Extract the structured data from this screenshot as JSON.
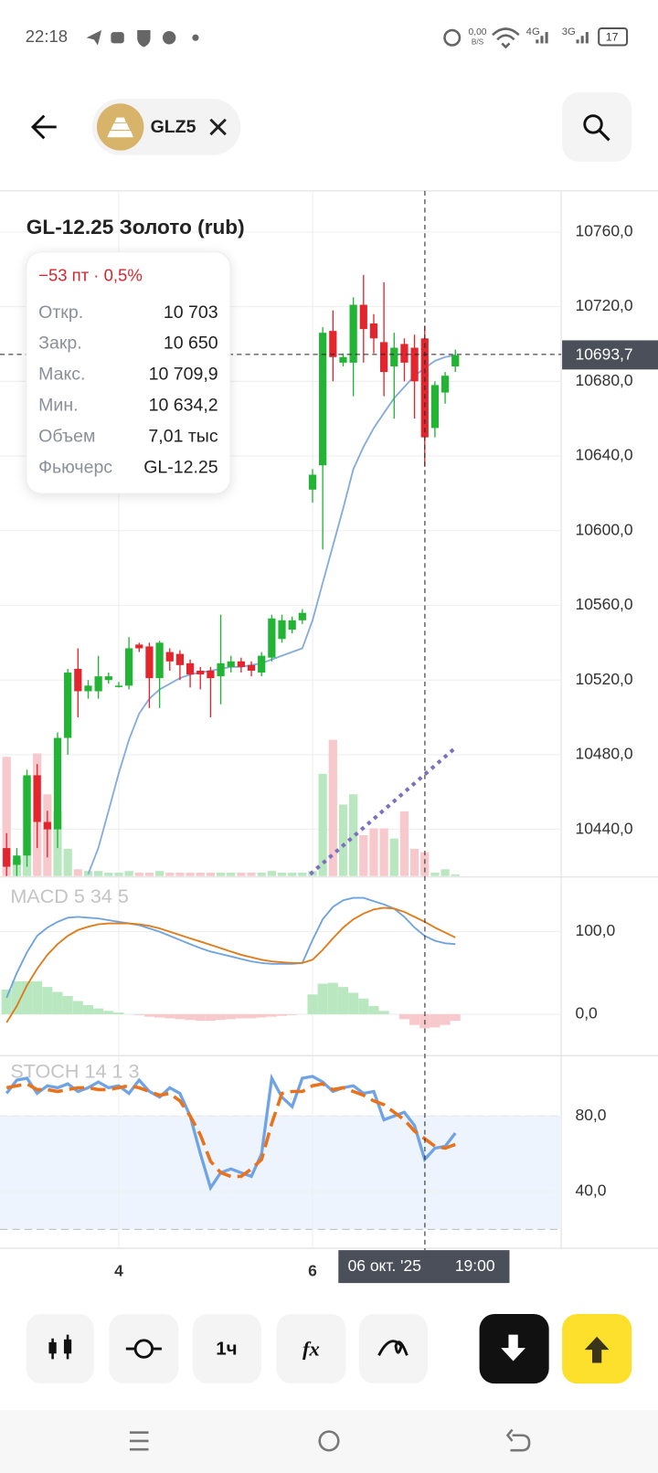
{
  "status_bar": {
    "time": "22:18",
    "net_speed": "0,00",
    "net_unit": "B/S",
    "signal_1": "4G",
    "signal_2": "3G",
    "battery": "17"
  },
  "header": {
    "ticker": "GLZ5"
  },
  "tooltip": {
    "change": "−53 пт · 0,5%",
    "rows": [
      {
        "label": "Откр.",
        "value": "10 703"
      },
      {
        "label": "Закр.",
        "value": "10 650"
      },
      {
        "label": "Макс.",
        "value": "10 709,9"
      },
      {
        "label": "Мин.",
        "value": "10 634,2"
      },
      {
        "label": "Объем",
        "value": "7,01 тыс"
      },
      {
        "label": "Фьючерс",
        "value": "GL-12.25"
      }
    ]
  },
  "toolbar": {
    "interval": "1ч",
    "indicators": "fx"
  },
  "chart_data": {
    "type": "candlestick",
    "title": "GL-12.25 Золото (rub)",
    "categories": [
      null,
      null,
      null,
      null,
      null,
      null,
      null,
      null,
      null,
      null,
      null,
      "4",
      null,
      null,
      null,
      null,
      null,
      null,
      null,
      null,
      null,
      null,
      null,
      null,
      null,
      null,
      null,
      null,
      null,
      null,
      "6",
      null,
      null,
      null,
      null,
      null,
      null,
      null,
      null,
      null,
      null,
      null,
      null,
      null,
      null
    ],
    "open": [
      10430,
      10421,
      10426,
      10469,
      10444,
      10440,
      10489,
      10526,
      10514,
      10514,
      10520,
      10517,
      10517,
      10539,
      10538,
      10521,
      10535,
      10534,
      10529,
      10525,
      10525,
      10522,
      10527,
      10530,
      10528,
      10524,
      10532,
      10542,
      10547,
      10552,
      10622,
      10635,
      10707,
      10690,
      10690,
      10721,
      10711,
      10701,
      10688,
      10700,
      10698,
      10703,
      10655,
      10674,
      10688
    ],
    "close": [
      10420,
      10426,
      10469,
      10444,
      10440,
      10489,
      10524,
      10514,
      10517,
      10522,
      10522,
      10517,
      10537,
      10537,
      10521,
      10540,
      10530,
      10528,
      10523,
      10523,
      10521,
      10529,
      10530,
      10527,
      10525,
      10533,
      10553,
      10552,
      10552,
      10556,
      10630,
      10706,
      10693,
      10693,
      10721,
      10708,
      10703,
      10685,
      10698,
      10690,
      10680,
      10650,
      10678,
      10683,
      10694
    ],
    "high": [
      10438,
      10430,
      10472,
      10475,
      10450,
      10492,
      10526,
      10537,
      10520,
      10533,
      10524,
      10519,
      10543,
      10540,
      10540,
      10541,
      10537,
      10536,
      10531,
      10527,
      10527,
      10555,
      10533,
      10532,
      10530,
      10535,
      10555,
      10555,
      10554,
      10558,
      10633,
      10709,
      10718,
      10695,
      10725,
      10737,
      10716,
      10733,
      10706,
      10703,
      10705,
      10709.9,
      10680,
      10685,
      10697
    ],
    "low": [
      10415,
      10415,
      10420,
      10430,
      10425,
      10430,
      10480,
      10500,
      10510,
      10510,
      10518,
      10516,
      10515,
      10535,
      10505,
      10505,
      10525,
      10520,
      10516,
      10515,
      10500,
      10507,
      10524,
      10524,
      10522,
      10522,
      10530,
      10540,
      10545,
      10550,
      10615,
      10590,
      10680,
      10688,
      10672,
      10690,
      10695,
      10672,
      10660,
      10680,
      10660,
      10634.2,
      10650,
      10668,
      10685
    ],
    "volume": [
      35,
      5,
      29,
      36,
      24,
      19,
      8,
      2,
      1.5,
      1.5,
      1,
      1,
      1.5,
      1,
      1,
      1.5,
      1,
      1,
      1,
      1,
      1,
      1,
      1,
      1,
      1,
      1,
      1.5,
      1,
      1,
      1,
      1.5,
      30,
      40,
      21,
      24,
      12,
      14,
      14,
      11,
      19,
      8,
      7.01,
      1,
      2,
      0.5
    ],
    "ma": [
      null,
      null,
      null,
      null,
      null,
      null,
      null,
      null,
      10416,
      10430,
      10450,
      10470,
      10488,
      10502,
      10510,
      10515,
      10518,
      10521,
      10523,
      10524,
      10525,
      10526,
      10527,
      10527,
      10528,
      10529,
      10531,
      10533,
      10535,
      10537,
      10552,
      10572,
      10592,
      10612,
      10633,
      10645,
      10655,
      10663,
      10671,
      10677,
      10683,
      10687,
      10691,
      10693,
      10694
    ],
    "up_color": "#22b434",
    "down_color": "#e3262e",
    "volume_up_color": "#b9e8c0",
    "volume_down_color": "#f8c9cc",
    "ma_color": "#86acd9",
    "ylim": [
      10415,
      10782
    ],
    "yticks": [
      {
        "value": 10440,
        "label": "10440,0"
      },
      {
        "value": 10480,
        "label": "10480,0"
      },
      {
        "value": 10520,
        "label": "10520,0"
      },
      {
        "value": 10560,
        "label": "10560,0"
      },
      {
        "value": 10600,
        "label": "10600,0"
      },
      {
        "value": 10640,
        "label": "10640,0"
      },
      {
        "value": 10680,
        "label": "10680,0"
      },
      {
        "value": 10720,
        "label": "10720,0"
      },
      {
        "value": 10760,
        "label": "10760,0"
      }
    ],
    "grid": true,
    "crosshair": {
      "price": "10693,7",
      "date": "06 окт. '25",
      "time": "19:00"
    },
    "macd": {
      "title": "MACD 5 34 5",
      "macd": [
        20,
        50,
        75,
        95,
        105,
        112,
        117,
        118,
        117,
        116,
        114,
        112,
        110,
        108,
        104,
        100,
        95,
        90,
        85,
        80,
        76,
        73,
        70,
        67,
        64,
        62,
        61,
        61,
        61,
        62,
        90,
        115,
        130,
        138,
        141,
        141,
        137,
        133,
        128,
        118,
        105,
        95,
        89,
        86,
        85
      ],
      "signal": [
        -10,
        10,
        35,
        55,
        72,
        85,
        95,
        102,
        106,
        109,
        110,
        110,
        110,
        109,
        107,
        104,
        100,
        96,
        92,
        88,
        84,
        80,
        76,
        72,
        69,
        66,
        64,
        63,
        62,
        62,
        66,
        78,
        92,
        105,
        115,
        122,
        127,
        129,
        128,
        124,
        118,
        112,
        105,
        99,
        93
      ],
      "histogram": [
        30,
        40,
        40,
        40,
        33,
        27,
        22,
        16,
        11,
        7,
        4,
        2,
        0,
        -1,
        -3,
        -4,
        -5,
        -6,
        -7,
        -8,
        -8,
        -7,
        -6,
        -5,
        -5,
        -4,
        -3,
        -2,
        -1,
        0,
        24,
        37,
        38,
        33,
        26,
        19,
        10,
        4,
        0,
        -6,
        -13,
        -17,
        -16,
        -13,
        -8
      ],
      "macd_color": "#6fa3e0",
      "signal_color": "#e07b1a",
      "ylim": [
        -49,
        164
      ],
      "yticks": [
        {
          "value": 0,
          "label": "0,0"
        },
        {
          "value": 100,
          "label": "100,0"
        }
      ]
    },
    "stoch": {
      "title": "STOCH 14 1 3",
      "k": [
        92,
        99,
        100,
        92,
        96,
        95,
        97,
        93,
        95,
        98,
        95,
        96,
        92,
        99,
        93,
        90,
        95,
        92,
        80,
        60,
        42,
        50,
        52,
        50,
        48,
        60,
        100,
        90,
        85,
        100,
        101,
        98,
        93,
        95,
        96,
        92,
        93,
        78,
        80,
        82,
        75,
        57,
        63,
        64,
        71
      ],
      "d": [
        95,
        96,
        97,
        94,
        94,
        93,
        94,
        95,
        95,
        94,
        94,
        95,
        96,
        95,
        93,
        91,
        92,
        88,
        80,
        70,
        56,
        50,
        48,
        48,
        52,
        57,
        76,
        92,
        93,
        93,
        96,
        97,
        94,
        95,
        93,
        91,
        88,
        86,
        82,
        78,
        72,
        68,
        64,
        63,
        65
      ],
      "k_color": "#6fa3e6",
      "d_color": "#e8731c",
      "band": [
        20,
        80
      ],
      "ylim": [
        10,
        111
      ],
      "yticks": [
        {
          "value": 40,
          "label": "40,0"
        },
        {
          "value": 80,
          "label": "80,0"
        }
      ]
    }
  }
}
